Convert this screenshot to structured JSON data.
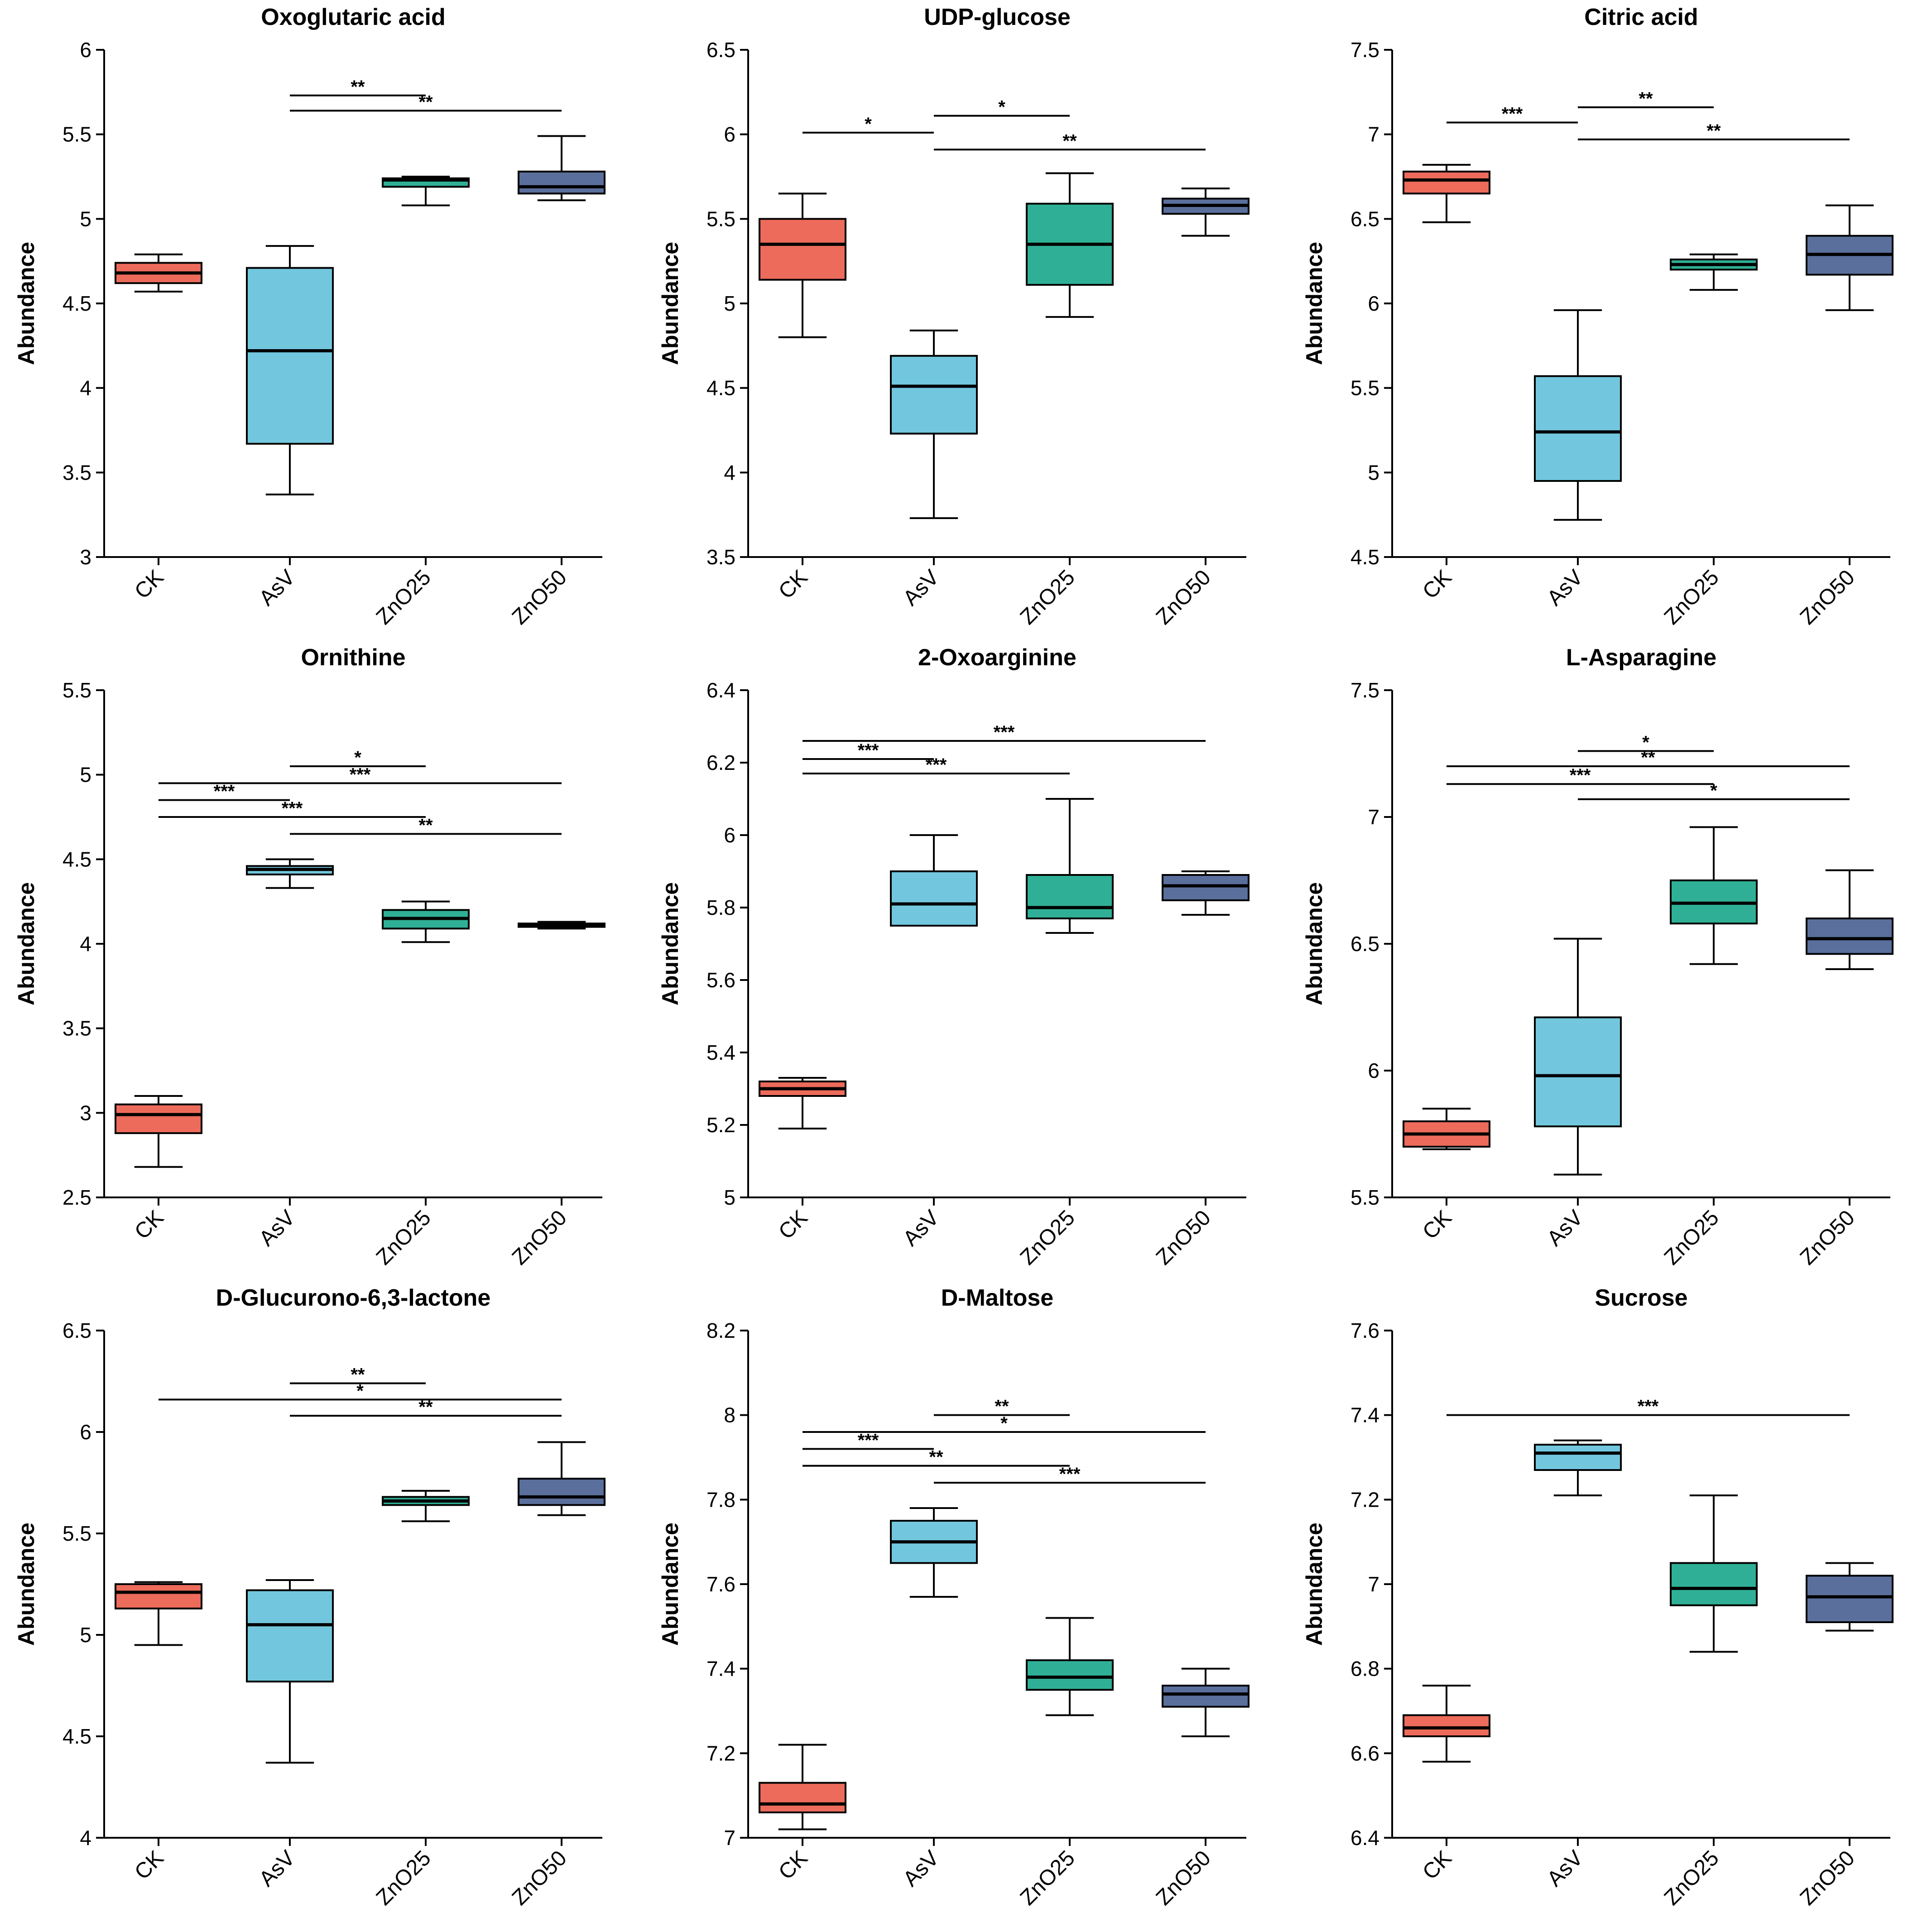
{
  "figure": {
    "group_colors": {
      "CK": "#ec6b5a",
      "AsV": "#72c7de",
      "ZnO25": "#2fb096",
      "ZnO50": "#5a6f9c"
    }
  },
  "chart_data": [
    {
      "type": "box",
      "title": "Oxoglutaric acid",
      "ylabel": "Abundance",
      "ylim": [
        3,
        6
      ],
      "yticks": [
        "3",
        "3.5",
        "4",
        "4.5",
        "5",
        "5.5",
        "6"
      ],
      "categories": [
        "CK",
        "AsV",
        "ZnO25",
        "ZnO50"
      ],
      "boxes": [
        {
          "group": "CK",
          "min": 4.57,
          "q1": 4.62,
          "median": 4.68,
          "q3": 4.74,
          "max": 4.79
        },
        {
          "group": "AsV",
          "min": 3.37,
          "q1": 3.67,
          "median": 4.22,
          "q3": 4.71,
          "max": 4.84
        },
        {
          "group": "ZnO25",
          "min": 5.08,
          "q1": 5.19,
          "median": 5.23,
          "q3": 5.24,
          "max": 5.25
        },
        {
          "group": "ZnO50",
          "min": 5.11,
          "q1": 5.15,
          "median": 5.19,
          "q3": 5.28,
          "max": 5.49
        }
      ],
      "significance": [
        {
          "from": "AsV",
          "to": "ZnO25",
          "y": 5.73,
          "label": "**"
        },
        {
          "from": "AsV",
          "to": "ZnO50",
          "y": 5.64,
          "label": "**"
        }
      ]
    },
    {
      "type": "box",
      "title": "UDP-glucose",
      "ylabel": "Abundance",
      "ylim": [
        3.5,
        6.5
      ],
      "yticks": [
        "3.5",
        "4",
        "4.5",
        "5",
        "5.5",
        "6",
        "6.5"
      ],
      "categories": [
        "CK",
        "AsV",
        "ZnO25",
        "ZnO50"
      ],
      "boxes": [
        {
          "group": "CK",
          "min": 4.8,
          "q1": 5.14,
          "median": 5.35,
          "q3": 5.5,
          "max": 5.65
        },
        {
          "group": "AsV",
          "min": 3.73,
          "q1": 4.23,
          "median": 4.51,
          "q3": 4.69,
          "max": 4.84
        },
        {
          "group": "ZnO25",
          "min": 4.92,
          "q1": 5.11,
          "median": 5.35,
          "q3": 5.59,
          "max": 5.77
        },
        {
          "group": "ZnO50",
          "min": 5.4,
          "q1": 5.53,
          "median": 5.58,
          "q3": 5.62,
          "max": 5.68
        }
      ],
      "significance": [
        {
          "from": "CK",
          "to": "AsV",
          "y": 6.01,
          "label": "*"
        },
        {
          "from": "AsV",
          "to": "ZnO25",
          "y": 6.11,
          "label": "*"
        },
        {
          "from": "AsV",
          "to": "ZnO50",
          "y": 5.91,
          "label": "**"
        }
      ]
    },
    {
      "type": "box",
      "title": "Citric acid",
      "ylabel": "Abundance",
      "ylim": [
        4.5,
        7.5
      ],
      "yticks": [
        "4.5",
        "5",
        "5.5",
        "6",
        "6.5",
        "7",
        "7.5"
      ],
      "categories": [
        "CK",
        "AsV",
        "ZnO25",
        "ZnO50"
      ],
      "boxes": [
        {
          "group": "CK",
          "min": 6.48,
          "q1": 6.65,
          "median": 6.73,
          "q3": 6.78,
          "max": 6.82
        },
        {
          "group": "AsV",
          "min": 4.72,
          "q1": 4.95,
          "median": 5.24,
          "q3": 5.57,
          "max": 5.96
        },
        {
          "group": "ZnO25",
          "min": 6.08,
          "q1": 6.2,
          "median": 6.23,
          "q3": 6.26,
          "max": 6.29
        },
        {
          "group": "ZnO50",
          "min": 5.96,
          "q1": 6.17,
          "median": 6.29,
          "q3": 6.4,
          "max": 6.58
        }
      ],
      "significance": [
        {
          "from": "CK",
          "to": "AsV",
          "y": 7.07,
          "label": "***"
        },
        {
          "from": "AsV",
          "to": "ZnO25",
          "y": 7.16,
          "label": "**"
        },
        {
          "from": "AsV",
          "to": "ZnO50",
          "y": 6.97,
          "label": "**"
        }
      ]
    },
    {
      "type": "box",
      "title": "Ornithine",
      "ylabel": "Abundance",
      "ylim": [
        2.5,
        5.5
      ],
      "yticks": [
        "2.5",
        "3",
        "3.5",
        "4",
        "4.5",
        "5",
        "5.5"
      ],
      "categories": [
        "CK",
        "AsV",
        "ZnO25",
        "ZnO50"
      ],
      "boxes": [
        {
          "group": "CK",
          "min": 2.68,
          "q1": 2.88,
          "median": 2.99,
          "q3": 3.05,
          "max": 3.1
        },
        {
          "group": "AsV",
          "min": 4.33,
          "q1": 4.41,
          "median": 4.44,
          "q3": 4.46,
          "max": 4.5
        },
        {
          "group": "ZnO25",
          "min": 4.01,
          "q1": 4.09,
          "median": 4.15,
          "q3": 4.2,
          "max": 4.25
        },
        {
          "group": "ZnO50",
          "min": 4.09,
          "q1": 4.1,
          "median": 4.11,
          "q3": 4.12,
          "max": 4.13
        }
      ],
      "significance": [
        {
          "from": "AsV",
          "to": "ZnO25",
          "y": 5.05,
          "label": "*"
        },
        {
          "from": "CK",
          "to": "ZnO50",
          "y": 4.95,
          "label": "***"
        },
        {
          "from": "CK",
          "to": "AsV",
          "y": 4.85,
          "label": "***"
        },
        {
          "from": "CK",
          "to": "ZnO25",
          "y": 4.75,
          "label": "***"
        },
        {
          "from": "AsV",
          "to": "ZnO50",
          "y": 4.65,
          "label": "**"
        }
      ]
    },
    {
      "type": "box",
      "title": "2-Oxoarginine",
      "ylabel": "Abundance",
      "ylim": [
        5,
        6.4
      ],
      "yticks": [
        "5",
        "5.2",
        "5.4",
        "5.6",
        "5.8",
        "6",
        "6.2",
        "6.4"
      ],
      "categories": [
        "CK",
        "AsV",
        "ZnO25",
        "ZnO50"
      ],
      "boxes": [
        {
          "group": "CK",
          "min": 5.19,
          "q1": 5.28,
          "median": 5.3,
          "q3": 5.32,
          "max": 5.33
        },
        {
          "group": "AsV",
          "min": 5.75,
          "q1": 5.75,
          "median": 5.81,
          "q3": 5.9,
          "max": 6.0
        },
        {
          "group": "ZnO25",
          "min": 5.73,
          "q1": 5.77,
          "median": 5.8,
          "q3": 5.89,
          "max": 6.1
        },
        {
          "group": "ZnO50",
          "min": 5.78,
          "q1": 5.82,
          "median": 5.86,
          "q3": 5.89,
          "max": 5.9
        }
      ],
      "significance": [
        {
          "from": "CK",
          "to": "ZnO50",
          "y": 6.26,
          "label": "***"
        },
        {
          "from": "CK",
          "to": "AsV",
          "y": 6.21,
          "label": "***"
        },
        {
          "from": "CK",
          "to": "ZnO25",
          "y": 6.17,
          "label": "***"
        }
      ]
    },
    {
      "type": "box",
      "title": "L-Asparagine",
      "ylabel": "Abundance",
      "ylim": [
        5.5,
        7.5
      ],
      "yticks": [
        "5.5",
        "6",
        "6.5",
        "7",
        "7.5"
      ],
      "categories": [
        "CK",
        "AsV",
        "ZnO25",
        "ZnO50"
      ],
      "boxes": [
        {
          "group": "CK",
          "min": 5.69,
          "q1": 5.7,
          "median": 5.75,
          "q3": 5.8,
          "max": 5.85
        },
        {
          "group": "AsV",
          "min": 5.59,
          "q1": 5.78,
          "median": 5.98,
          "q3": 6.21,
          "max": 6.52
        },
        {
          "group": "ZnO25",
          "min": 6.42,
          "q1": 6.58,
          "median": 6.66,
          "q3": 6.75,
          "max": 6.96
        },
        {
          "group": "ZnO50",
          "min": 6.4,
          "q1": 6.46,
          "median": 6.52,
          "q3": 6.6,
          "max": 6.79
        }
      ],
      "significance": [
        {
          "from": "AsV",
          "to": "ZnO25",
          "y": 7.26,
          "label": "*"
        },
        {
          "from": "CK",
          "to": "ZnO50",
          "y": 7.2,
          "label": "**"
        },
        {
          "from": "CK",
          "to": "ZnO25",
          "y": 7.13,
          "label": "***"
        },
        {
          "from": "AsV",
          "to": "ZnO50",
          "y": 7.07,
          "label": "*"
        }
      ]
    },
    {
      "type": "box",
      "title": "D-Glucurono-6,3-lactone",
      "ylabel": "Abundance",
      "ylim": [
        4,
        6.5
      ],
      "yticks": [
        "4",
        "4.5",
        "5",
        "5.5",
        "6",
        "6.5"
      ],
      "categories": [
        "CK",
        "AsV",
        "ZnO25",
        "ZnO50"
      ],
      "boxes": [
        {
          "group": "CK",
          "min": 4.95,
          "q1": 5.13,
          "median": 5.21,
          "q3": 5.25,
          "max": 5.26
        },
        {
          "group": "AsV",
          "min": 4.37,
          "q1": 4.77,
          "median": 5.05,
          "q3": 5.22,
          "max": 5.27
        },
        {
          "group": "ZnO25",
          "min": 5.56,
          "q1": 5.64,
          "median": 5.66,
          "q3": 5.68,
          "max": 5.71
        },
        {
          "group": "ZnO50",
          "min": 5.59,
          "q1": 5.64,
          "median": 5.68,
          "q3": 5.77,
          "max": 5.95
        }
      ],
      "significance": [
        {
          "from": "AsV",
          "to": "ZnO25",
          "y": 6.24,
          "label": "**"
        },
        {
          "from": "CK",
          "to": "ZnO50",
          "y": 6.16,
          "label": "*"
        },
        {
          "from": "AsV",
          "to": "ZnO50",
          "y": 6.08,
          "label": "**"
        }
      ]
    },
    {
      "type": "box",
      "title": "D-Maltose",
      "ylabel": "Abundance",
      "ylim": [
        7,
        8.2
      ],
      "yticks": [
        "7",
        "7.2",
        "7.4",
        "7.6",
        "7.8",
        "8",
        "8.2"
      ],
      "categories": [
        "CK",
        "AsV",
        "ZnO25",
        "ZnO50"
      ],
      "boxes": [
        {
          "group": "CK",
          "min": 7.02,
          "q1": 7.06,
          "median": 7.08,
          "q3": 7.13,
          "max": 7.22
        },
        {
          "group": "AsV",
          "min": 7.57,
          "q1": 7.65,
          "median": 7.7,
          "q3": 7.75,
          "max": 7.78
        },
        {
          "group": "ZnO25",
          "min": 7.29,
          "q1": 7.35,
          "median": 7.38,
          "q3": 7.42,
          "max": 7.52
        },
        {
          "group": "ZnO50",
          "min": 7.24,
          "q1": 7.31,
          "median": 7.34,
          "q3": 7.36,
          "max": 7.4
        }
      ],
      "significance": [
        {
          "from": "AsV",
          "to": "ZnO25",
          "y": 8.0,
          "label": "**"
        },
        {
          "from": "CK",
          "to": "ZnO50",
          "y": 7.96,
          "label": "*"
        },
        {
          "from": "CK",
          "to": "AsV",
          "y": 7.92,
          "label": "***"
        },
        {
          "from": "CK",
          "to": "ZnO25",
          "y": 7.88,
          "label": "**"
        },
        {
          "from": "AsV",
          "to": "ZnO50",
          "y": 7.84,
          "label": "***"
        }
      ]
    },
    {
      "type": "box",
      "title": "Sucrose",
      "ylabel": "Abundance",
      "ylim": [
        6.4,
        7.6
      ],
      "yticks": [
        "6.4",
        "6.6",
        "6.8",
        "7",
        "7.2",
        "7.4",
        "7.6"
      ],
      "categories": [
        "CK",
        "AsV",
        "ZnO25",
        "ZnO50"
      ],
      "boxes": [
        {
          "group": "CK",
          "min": 6.58,
          "q1": 6.64,
          "median": 6.66,
          "q3": 6.69,
          "max": 6.76
        },
        {
          "group": "AsV",
          "min": 7.21,
          "q1": 7.27,
          "median": 7.31,
          "q3": 7.33,
          "max": 7.34
        },
        {
          "group": "ZnO25",
          "min": 6.84,
          "q1": 6.95,
          "median": 6.99,
          "q3": 7.05,
          "max": 7.21
        },
        {
          "group": "ZnO50",
          "min": 6.89,
          "q1": 6.91,
          "median": 6.97,
          "q3": 7.02,
          "max": 7.05
        }
      ],
      "significance": [
        {
          "from": "CK",
          "to": "ZnO50",
          "y": 7.4,
          "label": "***"
        }
      ]
    }
  ]
}
